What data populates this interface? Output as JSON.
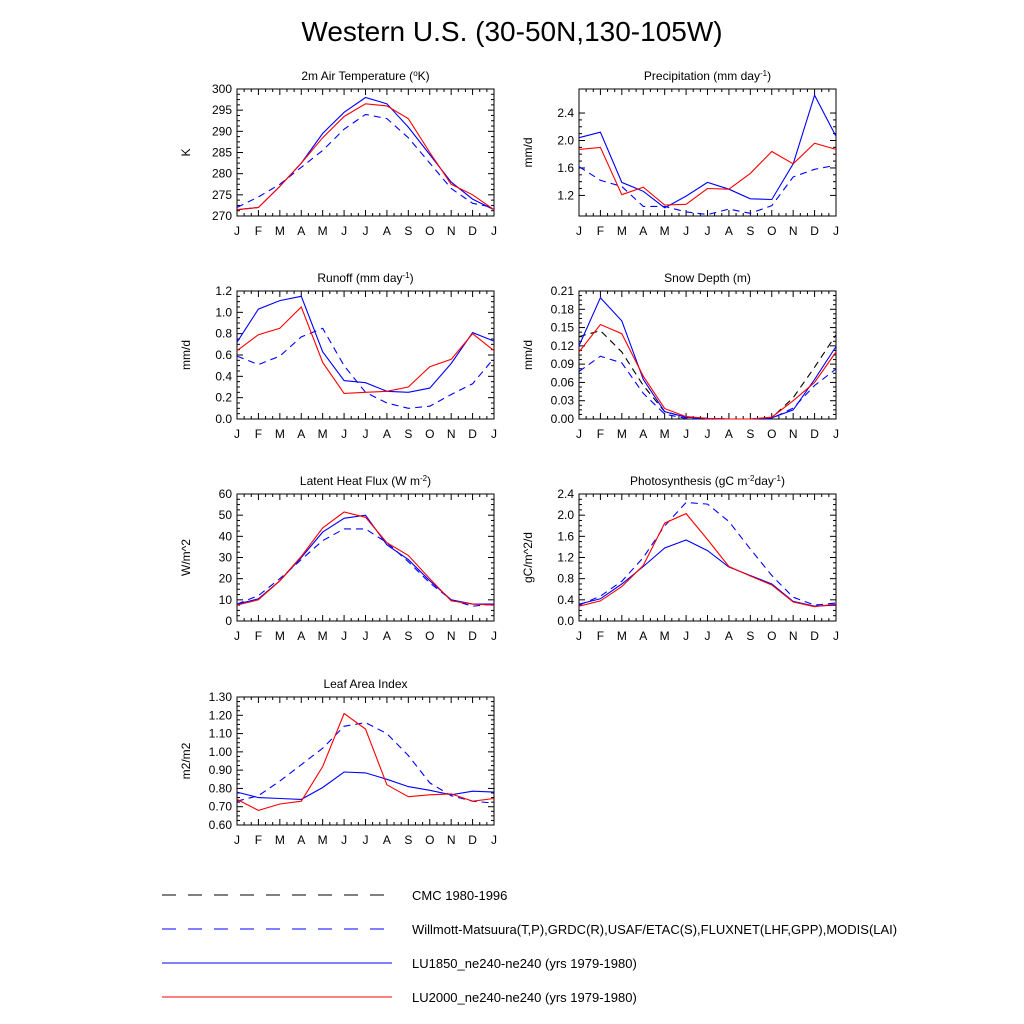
{
  "title": "Western U.S. (30-50N,130-105W)",
  "colors": {
    "obs_alt": "#000000",
    "obs": "#0000ff",
    "lu1850": "#0000ff",
    "lu2000": "#ff0000"
  },
  "legend": [
    {
      "label": "CMC 1980-1996",
      "color": "#000000",
      "dashed": true
    },
    {
      "label": "Willmott-Matsuura(T,P),GRDC(R),USAF/ETAC(S),FLUXNET(LHF,GPP),MODIS(LAI)",
      "color": "#0000ff",
      "dashed": true
    },
    {
      "label": "LU1850_ne240-ne240 (yrs 1979-1980)",
      "color": "#0000ff",
      "dashed": false
    },
    {
      "label": "LU2000_ne240-ne240 (yrs 1979-1980)",
      "color": "#ff0000",
      "dashed": false
    }
  ],
  "chart_data": [
    {
      "type": "line",
      "title": "2m Air Temperature (°K)",
      "title_parts": [
        "2m Air Temperature (",
        "o",
        "K)"
      ],
      "title_sup": [
        1
      ],
      "ylabel": "K",
      "months": [
        "J",
        "F",
        "M",
        "A",
        "M",
        "J",
        "J",
        "A",
        "S",
        "O",
        "N",
        "D",
        "J"
      ],
      "ylim": [
        270,
        300
      ],
      "yticks": [
        270,
        275,
        280,
        285,
        290,
        295,
        300
      ],
      "ytick_labels": [
        "270",
        "275",
        "280",
        "285",
        "290",
        "295",
        "300"
      ],
      "series": [
        {
          "key": "obs",
          "dashed": true,
          "color": "#0000ff",
          "values": [
            272,
            274.5,
            277.5,
            281.5,
            285.5,
            290.5,
            294,
            293,
            288.5,
            282.5,
            276.5,
            273,
            272
          ]
        },
        {
          "key": "lu1850",
          "dashed": false,
          "color": "#0000ff",
          "values": [
            271.5,
            272,
            277,
            282.5,
            289.5,
            294.5,
            298,
            296.5,
            291,
            284.5,
            278,
            274,
            271.5
          ]
        },
        {
          "key": "lu2000",
          "dashed": false,
          "color": "#ff0000",
          "values": [
            271.5,
            272,
            277,
            282.5,
            288.5,
            293.5,
            296.5,
            296,
            293,
            285,
            277.5,
            275,
            271.5
          ]
        }
      ]
    },
    {
      "type": "line",
      "title": "Precipitation (mm day-1)",
      "title_parts": [
        "Precipitation (mm day",
        "-1",
        ")"
      ],
      "title_sup": [
        1
      ],
      "ylabel": "mm/d",
      "months": [
        "J",
        "F",
        "M",
        "A",
        "M",
        "J",
        "J",
        "A",
        "S",
        "O",
        "N",
        "D",
        "J"
      ],
      "ylim": [
        0.9,
        2.75
      ],
      "yticks": [
        1.2,
        1.6,
        2.0,
        2.4
      ],
      "ytick_labels": [
        "1.2",
        "1.6",
        "2.0",
        "2.4"
      ],
      "series": [
        {
          "key": "obs",
          "dashed": true,
          "color": "#0000ff",
          "values": [
            1.62,
            1.42,
            1.33,
            1.04,
            1.04,
            0.96,
            0.92,
            1.0,
            0.94,
            1.05,
            1.47,
            1.58,
            1.64
          ]
        },
        {
          "key": "lu1850",
          "dashed": false,
          "color": "#0000ff",
          "values": [
            2.04,
            2.12,
            1.39,
            1.26,
            1.02,
            1.19,
            1.39,
            1.29,
            1.15,
            1.14,
            1.66,
            2.66,
            2.06
          ]
        },
        {
          "key": "lu2000",
          "dashed": false,
          "color": "#ff0000",
          "values": [
            1.87,
            1.9,
            1.21,
            1.32,
            1.06,
            1.07,
            1.3,
            1.29,
            1.52,
            1.84,
            1.66,
            1.96,
            1.87
          ]
        }
      ]
    },
    {
      "type": "line",
      "title": "Runoff (mm day-1)",
      "title_parts": [
        "Runoff (mm day",
        "-1",
        ")"
      ],
      "title_sup": [
        1
      ],
      "ylabel": "mm/d",
      "months": [
        "J",
        "F",
        "M",
        "A",
        "M",
        "J",
        "J",
        "A",
        "S",
        "O",
        "N",
        "D",
        "J"
      ],
      "ylim": [
        0,
        1.2
      ],
      "yticks": [
        0.0,
        0.2,
        0.4,
        0.6,
        0.8,
        1.0,
        1.2
      ],
      "ytick_labels": [
        "0.0",
        "0.2",
        "0.4",
        "0.6",
        "0.8",
        "1.0",
        "1.2"
      ],
      "series": [
        {
          "key": "obs",
          "dashed": true,
          "color": "#0000ff",
          "values": [
            0.59,
            0.51,
            0.59,
            0.77,
            0.85,
            0.5,
            0.25,
            0.15,
            0.1,
            0.12,
            0.23,
            0.33,
            0.57
          ]
        },
        {
          "key": "lu1850",
          "dashed": false,
          "color": "#0000ff",
          "values": [
            0.72,
            1.03,
            1.11,
            1.15,
            0.63,
            0.36,
            0.34,
            0.26,
            0.25,
            0.29,
            0.52,
            0.81,
            0.73
          ]
        },
        {
          "key": "lu2000",
          "dashed": false,
          "color": "#ff0000",
          "values": [
            0.64,
            0.79,
            0.85,
            1.05,
            0.53,
            0.24,
            0.25,
            0.26,
            0.3,
            0.49,
            0.56,
            0.8,
            0.64
          ]
        }
      ]
    },
    {
      "type": "line",
      "title": "Snow Depth (m)",
      "title_parts": [
        "Snow Depth (m)"
      ],
      "title_sup": [],
      "ylabel": "mm/d",
      "months": [
        "J",
        "F",
        "M",
        "A",
        "M",
        "J",
        "J",
        "A",
        "S",
        "O",
        "N",
        "D",
        "J"
      ],
      "ylim": [
        0,
        0.21
      ],
      "yticks": [
        0.0,
        0.03,
        0.06,
        0.09,
        0.12,
        0.15,
        0.18,
        0.21
      ],
      "ytick_labels": [
        "0.00",
        "0.03",
        "0.06",
        "0.09",
        "0.12",
        "0.15",
        "0.18",
        "0.21"
      ],
      "series": [
        {
          "key": "cmc",
          "dashed": true,
          "color": "#000000",
          "values": [
            0.135,
            0.145,
            0.11,
            0.055,
            0.012,
            0.003,
            0.001,
            0.0,
            0.0,
            0.002,
            0.035,
            0.085,
            0.138
          ]
        },
        {
          "key": "obs",
          "dashed": true,
          "color": "#0000ff",
          "values": [
            0.078,
            0.103,
            0.092,
            0.042,
            0.008,
            0.001,
            0.0,
            0.0,
            0.0,
            0.001,
            0.018,
            0.055,
            0.082
          ]
        },
        {
          "key": "lu1850",
          "dashed": false,
          "color": "#0000ff",
          "values": [
            0.12,
            0.199,
            0.161,
            0.065,
            0.012,
            0.003,
            0.001,
            0.0,
            0.0,
            0.002,
            0.015,
            0.065,
            0.119
          ]
        },
        {
          "key": "lu2000",
          "dashed": false,
          "color": "#ff0000",
          "values": [
            0.11,
            0.155,
            0.14,
            0.07,
            0.017,
            0.004,
            0.001,
            0.0,
            0.0,
            0.003,
            0.03,
            0.06,
            0.11
          ]
        }
      ]
    },
    {
      "type": "line",
      "title": "Latent Heat Flux (W m-2)",
      "title_parts": [
        "Latent Heat Flux (W m",
        "-2",
        ")"
      ],
      "title_sup": [
        1
      ],
      "ylabel": "W/m^2",
      "months": [
        "J",
        "F",
        "M",
        "A",
        "M",
        "J",
        "J",
        "A",
        "S",
        "O",
        "N",
        "D",
        "J"
      ],
      "ylim": [
        0,
        60
      ],
      "yticks": [
        0,
        10,
        20,
        30,
        40,
        50,
        60
      ],
      "ytick_labels": [
        "0",
        "10",
        "20",
        "30",
        "40",
        "50",
        "60"
      ],
      "series": [
        {
          "key": "obs",
          "dashed": true,
          "color": "#0000ff",
          "values": [
            8,
            12,
            20,
            29,
            38,
            43.5,
            43.5,
            37,
            28,
            18,
            10,
            7,
            8
          ]
        },
        {
          "key": "lu1850",
          "dashed": false,
          "color": "#0000ff",
          "values": [
            8,
            10.5,
            19,
            30,
            42,
            48.5,
            50,
            36,
            29,
            19,
            10,
            8,
            8
          ]
        },
        {
          "key": "lu2000",
          "dashed": false,
          "color": "#ff0000",
          "values": [
            7.5,
            10,
            19,
            30.5,
            44,
            51.5,
            49,
            37,
            31,
            20,
            9.5,
            8,
            7.5
          ]
        }
      ]
    },
    {
      "type": "line",
      "title": "Photosynthesis (gC m-2day-1)",
      "title_parts": [
        "Photosynthesis (gC m",
        "-2",
        "day",
        "-1",
        ")"
      ],
      "title_sup": [
        1,
        3
      ],
      "ylabel": "gC/m^2/d",
      "months": [
        "J",
        "F",
        "M",
        "A",
        "M",
        "J",
        "J",
        "A",
        "S",
        "O",
        "N",
        "D",
        "J"
      ],
      "ylim": [
        0,
        2.4
      ],
      "yticks": [
        0.0,
        0.4,
        0.8,
        1.2,
        1.6,
        2.0,
        2.4
      ],
      "ytick_labels": [
        "0.0",
        "0.4",
        "0.8",
        "1.2",
        "1.6",
        "2.0",
        "2.4"
      ],
      "series": [
        {
          "key": "obs",
          "dashed": true,
          "color": "#0000ff",
          "values": [
            0.3,
            0.47,
            0.75,
            1.2,
            1.8,
            2.24,
            2.21,
            1.88,
            1.36,
            0.86,
            0.45,
            0.3,
            0.34
          ]
        },
        {
          "key": "lu1850",
          "dashed": false,
          "color": "#0000ff",
          "values": [
            0.32,
            0.42,
            0.7,
            1.03,
            1.38,
            1.53,
            1.33,
            1.02,
            0.86,
            0.7,
            0.37,
            0.28,
            0.3
          ]
        },
        {
          "key": "lu2000",
          "dashed": false,
          "color": "#ff0000",
          "values": [
            0.28,
            0.38,
            0.65,
            1.05,
            1.85,
            2.03,
            1.54,
            1.03,
            0.85,
            0.68,
            0.36,
            0.27,
            0.32
          ]
        }
      ]
    },
    {
      "type": "line",
      "title": "Leaf Area Index",
      "title_parts": [
        "Leaf Area Index"
      ],
      "title_sup": [],
      "ylabel": "m2/m2",
      "months": [
        "J",
        "F",
        "M",
        "A",
        "M",
        "J",
        "J",
        "A",
        "S",
        "O",
        "N",
        "D",
        "J"
      ],
      "ylim": [
        0.6,
        1.3
      ],
      "yticks": [
        0.6,
        0.7,
        0.8,
        0.9,
        1.0,
        1.1,
        1.2,
        1.3
      ],
      "ytick_labels": [
        "0.60",
        "0.70",
        "0.80",
        "0.90",
        "1.00",
        "1.10",
        "1.20",
        "1.30"
      ],
      "series": [
        {
          "key": "obs",
          "dashed": true,
          "color": "#0000ff",
          "values": [
            0.73,
            0.76,
            0.84,
            0.93,
            1.02,
            1.14,
            1.16,
            1.1,
            0.98,
            0.83,
            0.76,
            0.73,
            0.72
          ]
        },
        {
          "key": "lu1850",
          "dashed": false,
          "color": "#0000ff",
          "values": [
            0.78,
            0.75,
            0.745,
            0.74,
            0.805,
            0.89,
            0.885,
            0.85,
            0.81,
            0.79,
            0.765,
            0.785,
            0.78
          ]
        },
        {
          "key": "lu2000",
          "dashed": false,
          "color": "#ff0000",
          "values": [
            0.74,
            0.68,
            0.715,
            0.73,
            0.92,
            1.21,
            1.125,
            0.82,
            0.755,
            0.765,
            0.77,
            0.73,
            0.745
          ]
        }
      ]
    }
  ]
}
